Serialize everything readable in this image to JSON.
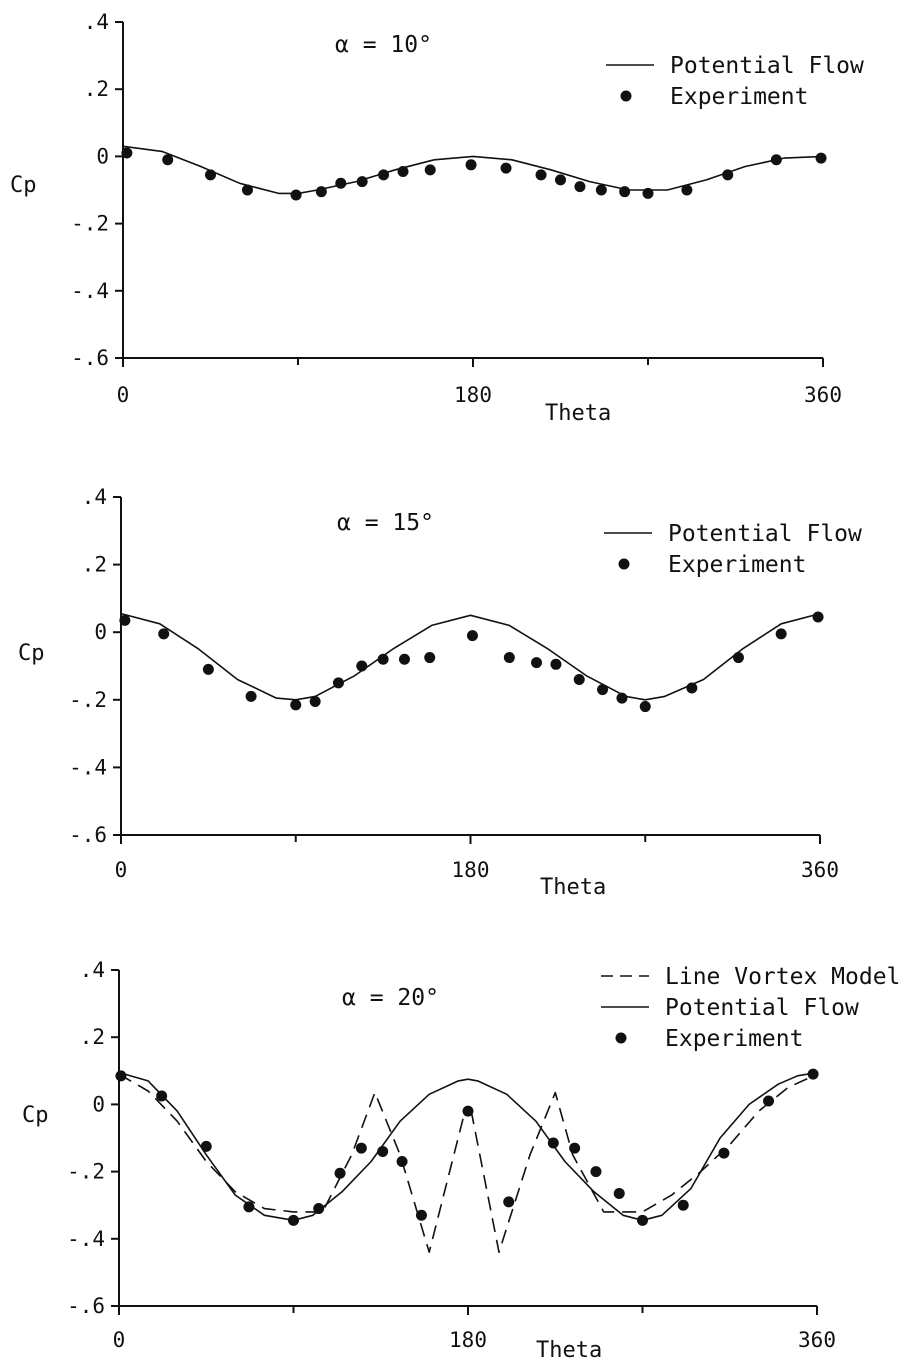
{
  "chart_data": [
    {
      "type": "line",
      "title": "α = 10°",
      "xlabel": "Theta",
      "ylabel": "Cp",
      "xlim": [
        0,
        360
      ],
      "ylim": [
        -0.6,
        0.4
      ],
      "x_ticks": [
        0,
        180,
        360
      ],
      "x_tick_labels": [
        "0",
        "180",
        "360"
      ],
      "y_ticks": [
        0.4,
        0.2,
        0,
        -0.2,
        -0.4,
        -0.6
      ],
      "y_tick_labels": [
        ".4",
        ".2",
        "0",
        "-.2",
        "-.4",
        "-.6"
      ],
      "legend_position": "top-right",
      "grid": false,
      "series": [
        {
          "name": "Potential Flow",
          "style": "solid",
          "x": [
            0,
            20,
            40,
            60,
            80,
            90,
            100,
            120,
            140,
            160,
            180,
            200,
            220,
            240,
            260,
            270,
            280,
            300,
            320,
            340,
            360
          ],
          "y": [
            0.03,
            0.015,
            -0.03,
            -0.08,
            -0.11,
            -0.11,
            -0.1,
            -0.075,
            -0.04,
            -0.01,
            0.0,
            -0.01,
            -0.04,
            -0.075,
            -0.1,
            -0.1,
            -0.1,
            -0.07,
            -0.03,
            -0.005,
            0.0
          ]
        },
        {
          "name": "Experiment",
          "style": "markers",
          "x": [
            2,
            23,
            45,
            64,
            89,
            102,
            112,
            123,
            134,
            144,
            158,
            179,
            197,
            215,
            225,
            235,
            246,
            258,
            270,
            290,
            311,
            336,
            359
          ],
          "y": [
            0.01,
            -0.01,
            -0.055,
            -0.1,
            -0.115,
            -0.105,
            -0.08,
            -0.075,
            -0.055,
            -0.045,
            -0.04,
            -0.025,
            -0.035,
            -0.055,
            -0.07,
            -0.09,
            -0.1,
            -0.105,
            -0.11,
            -0.1,
            -0.055,
            -0.01,
            -0.005
          ]
        }
      ]
    },
    {
      "type": "line",
      "title": "α = 15°",
      "xlabel": "Theta",
      "ylabel": "Cp",
      "xlim": [
        0,
        360
      ],
      "ylim": [
        -0.6,
        0.4
      ],
      "x_ticks": [
        0,
        180,
        360
      ],
      "x_tick_labels": [
        "0",
        "180",
        "360"
      ],
      "y_ticks": [
        0.4,
        0.2,
        0,
        -0.2,
        -0.4,
        -0.6
      ],
      "y_tick_labels": [
        ".4",
        ".2",
        "0",
        "-.2",
        "-.4",
        "-.6"
      ],
      "legend_position": "top-right",
      "grid": false,
      "series": [
        {
          "name": "Potential Flow",
          "style": "solid",
          "x": [
            0,
            20,
            40,
            60,
            80,
            90,
            100,
            120,
            140,
            160,
            180,
            200,
            220,
            240,
            260,
            270,
            280,
            300,
            320,
            340,
            360
          ],
          "y": [
            0.055,
            0.025,
            -0.05,
            -0.14,
            -0.195,
            -0.2,
            -0.19,
            -0.13,
            -0.05,
            0.02,
            0.05,
            0.02,
            -0.05,
            -0.13,
            -0.19,
            -0.2,
            -0.19,
            -0.14,
            -0.05,
            0.025,
            0.055
          ]
        },
        {
          "name": "Experiment",
          "style": "markers",
          "x": [
            2,
            22,
            45,
            67,
            90,
            100,
            112,
            124,
            135,
            146,
            159,
            181,
            200,
            214,
            224,
            236,
            248,
            258,
            270,
            294,
            318,
            340,
            359
          ],
          "y": [
            0.035,
            -0.005,
            -0.11,
            -0.19,
            -0.215,
            -0.205,
            -0.15,
            -0.1,
            -0.08,
            -0.08,
            -0.075,
            -0.01,
            -0.075,
            -0.09,
            -0.095,
            -0.14,
            -0.17,
            -0.195,
            -0.22,
            -0.165,
            -0.075,
            -0.005,
            0.045
          ]
        }
      ]
    },
    {
      "type": "line",
      "title": "α = 20°",
      "xlabel": "Theta",
      "ylabel": "Cp",
      "xlim": [
        0,
        360
      ],
      "ylim": [
        -0.6,
        0.4
      ],
      "x_ticks": [
        0,
        180,
        360
      ],
      "x_tick_labels": [
        "0",
        "180",
        "360"
      ],
      "y_ticks": [
        0.4,
        0.2,
        0,
        -0.2,
        -0.4,
        -0.6
      ],
      "y_tick_labels": [
        ".4",
        ".2",
        "0",
        "-.2",
        "-.4",
        "-.6"
      ],
      "legend_position": "top-right",
      "grid": false,
      "series": [
        {
          "name": "Line Vortex Model",
          "style": "dashed",
          "x": [
            0,
            15,
            30,
            45,
            60,
            75,
            90,
            105,
            120,
            132,
            145,
            160,
            178,
            182,
            196,
            212,
            225,
            234,
            250,
            270,
            285,
            300,
            315,
            330,
            345,
            360
          ],
          "y": [
            0.09,
            0.04,
            -0.05,
            -0.17,
            -0.26,
            -0.31,
            -0.32,
            -0.32,
            -0.15,
            0.035,
            -0.15,
            -0.44,
            -0.03,
            -0.03,
            -0.44,
            -0.15,
            0.035,
            -0.15,
            -0.32,
            -0.32,
            -0.27,
            -0.2,
            -0.12,
            -0.02,
            0.05,
            0.09
          ]
        },
        {
          "name": "Potential Flow",
          "style": "solid",
          "x": [
            0,
            15,
            30,
            45,
            60,
            75,
            90,
            100,
            115,
            130,
            145,
            160,
            175,
            180,
            185,
            200,
            215,
            230,
            245,
            260,
            270,
            280,
            295,
            310,
            325,
            340,
            350,
            360
          ],
          "y": [
            0.095,
            0.07,
            -0.02,
            -0.15,
            -0.27,
            -0.33,
            -0.345,
            -0.33,
            -0.26,
            -0.17,
            -0.05,
            0.03,
            0.07,
            0.075,
            0.07,
            0.03,
            -0.05,
            -0.17,
            -0.26,
            -0.33,
            -0.345,
            -0.33,
            -0.25,
            -0.1,
            0.0,
            0.06,
            0.085,
            0.095
          ]
        },
        {
          "name": "Experiment",
          "style": "markers",
          "x": [
            1,
            22,
            45,
            67,
            90,
            103,
            114,
            125,
            136,
            146,
            156,
            180,
            201,
            224,
            235,
            246,
            258,
            270,
            291,
            312,
            335,
            358
          ],
          "y": [
            0.085,
            0.025,
            -0.125,
            -0.305,
            -0.345,
            -0.31,
            -0.205,
            -0.13,
            -0.14,
            -0.17,
            -0.33,
            -0.02,
            -0.29,
            -0.115,
            -0.13,
            -0.2,
            -0.265,
            -0.345,
            -0.3,
            -0.145,
            0.01,
            0.09
          ]
        }
      ]
    }
  ]
}
